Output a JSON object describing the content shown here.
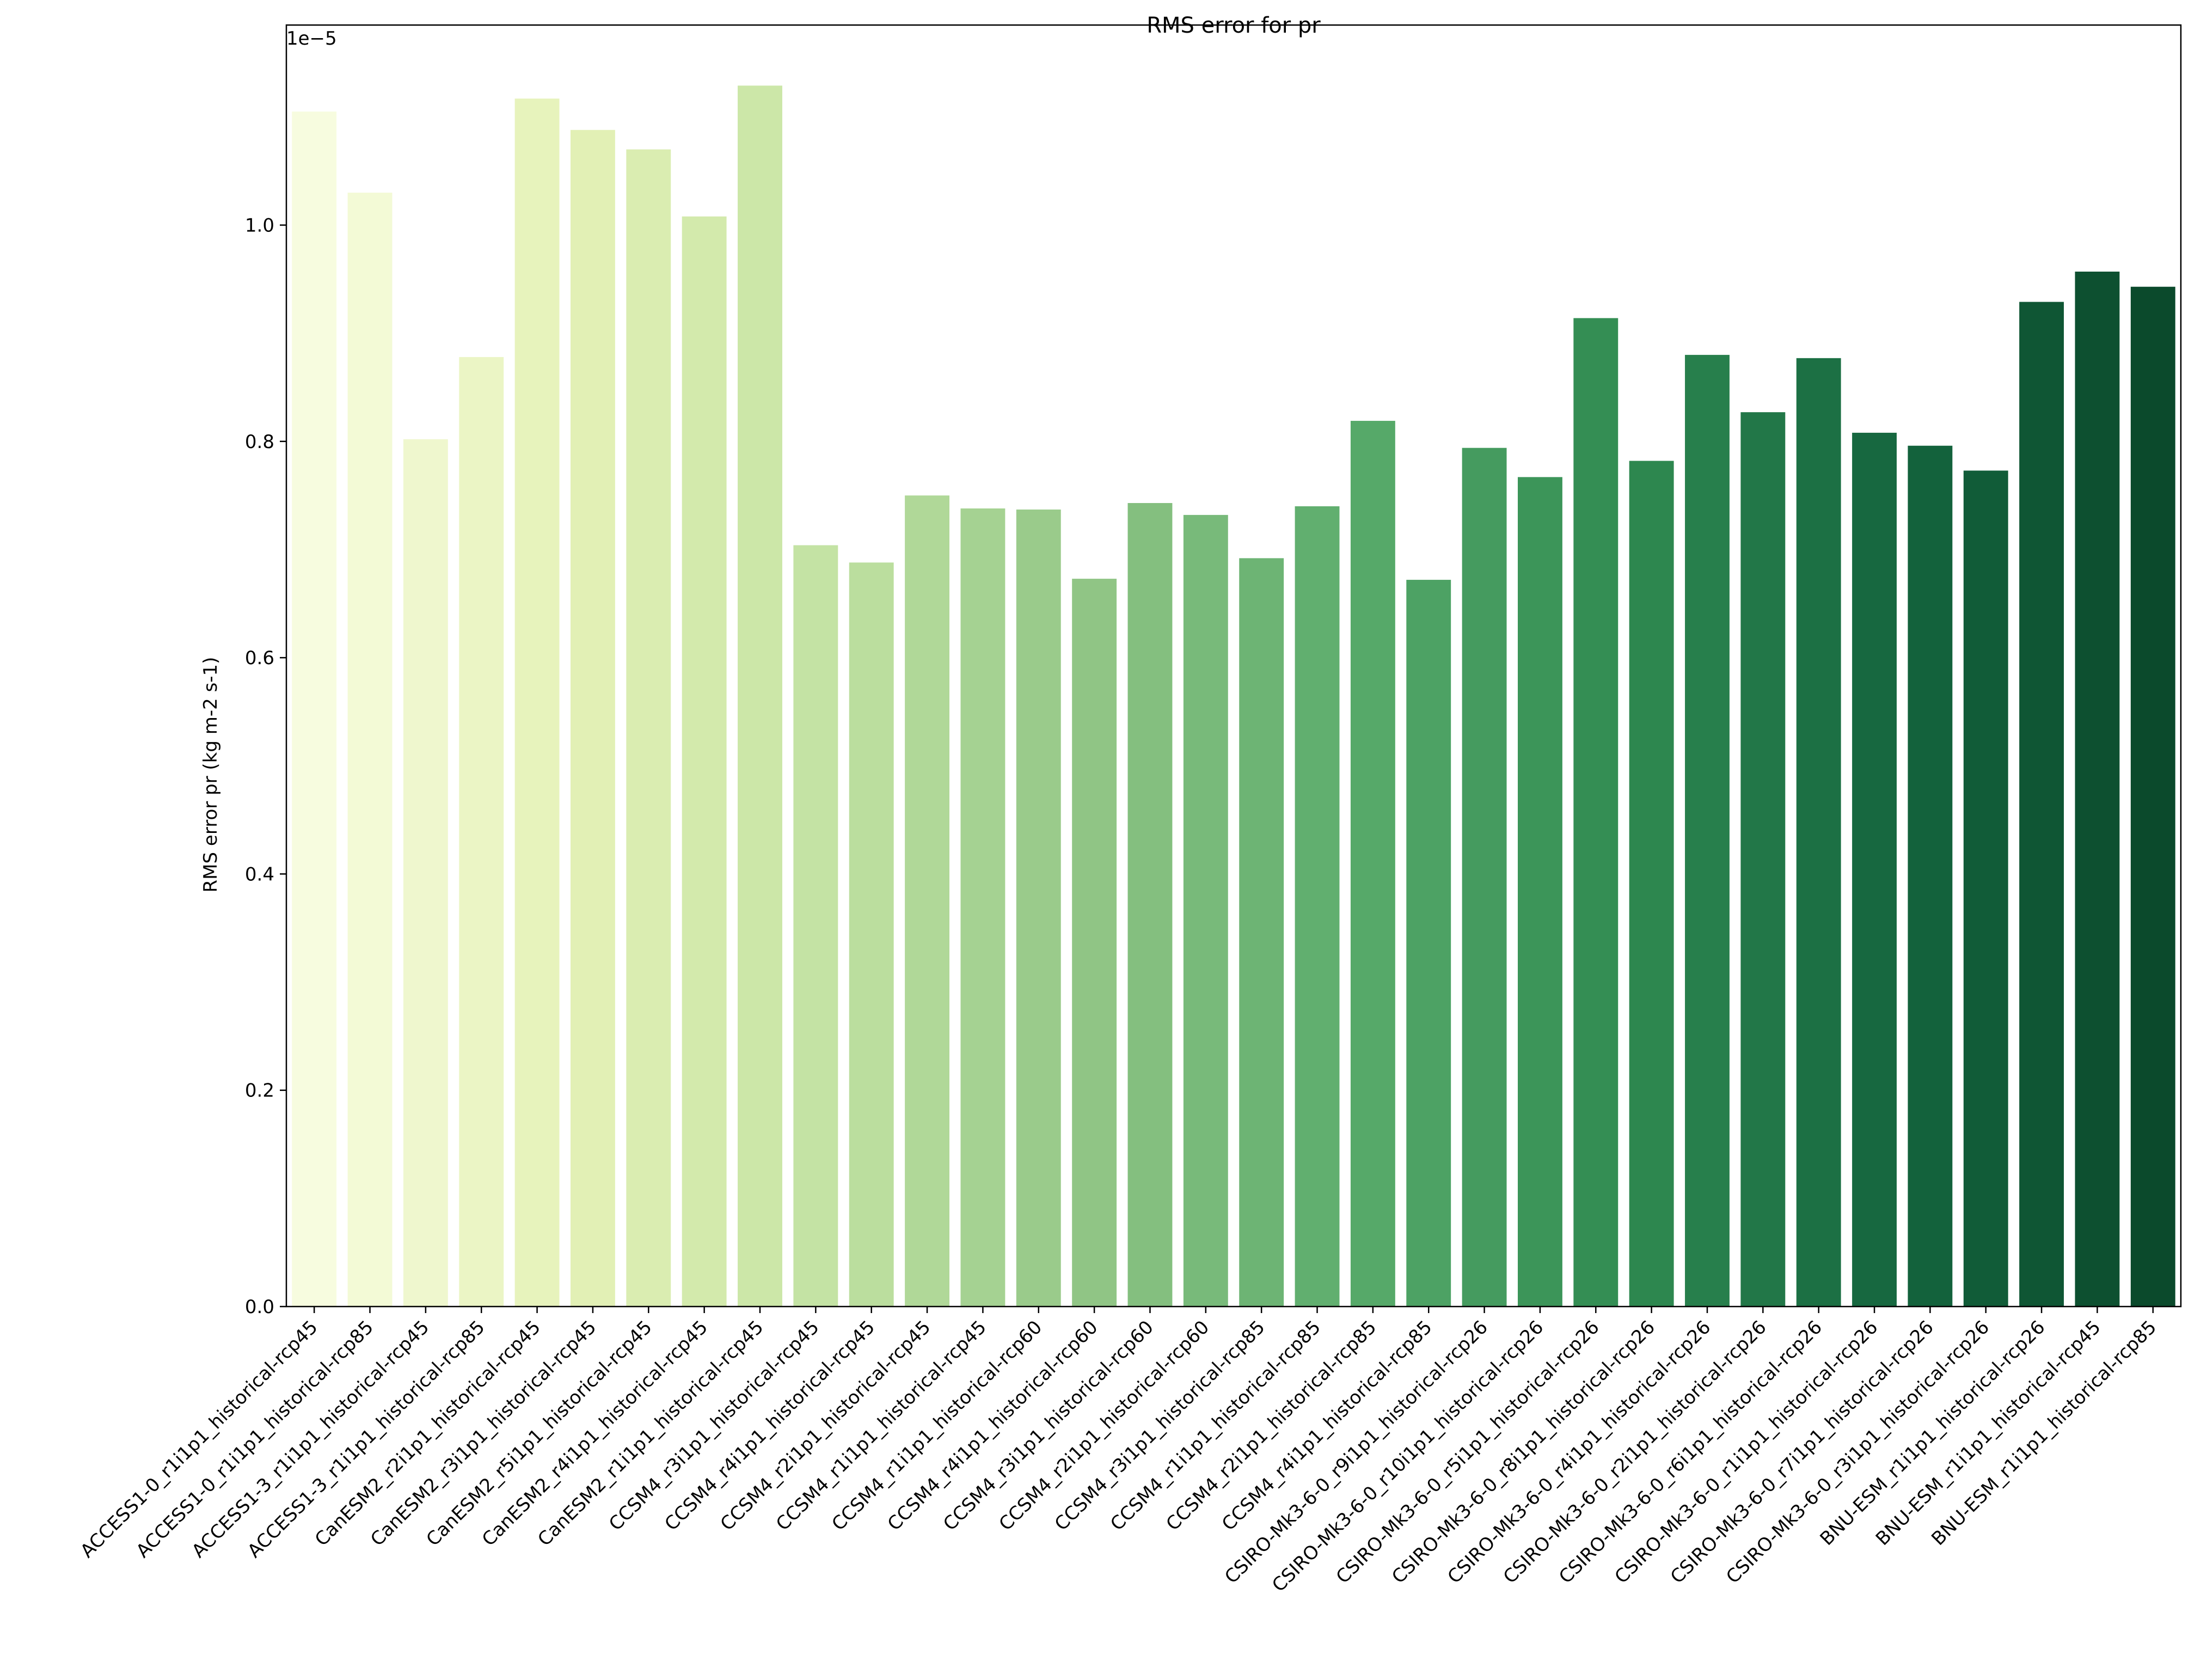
{
  "chart_data": {
    "type": "bar",
    "title": "RMS error for pr",
    "xlabel": "",
    "ylabel": "RMS error pr (kg m-2 s-1)",
    "offset_label": "1e−5",
    "ylim": [
      0,
      1.185
    ],
    "yticks": [
      0.0,
      0.2,
      0.4,
      0.6,
      0.8,
      1.0
    ],
    "ytick_labels": [
      "0.0",
      "0.2",
      "0.4",
      "0.6",
      "0.8",
      "1.0"
    ],
    "grid": false,
    "colormap": "YlGn",
    "colormap_stops": [
      "#f7fcdf",
      "#e4f1b6",
      "#c1e2a2",
      "#8ec484",
      "#57aa6a",
      "#2f8a51",
      "#15663f",
      "#0b4a2c"
    ],
    "categories": [
      "ACCESS1-0_r1i1p1_historical-rcp45",
      "ACCESS1-0_r1i1p1_historical-rcp85",
      "ACCESS1-3_r1i1p1_historical-rcp45",
      "ACCESS1-3_r1i1p1_historical-rcp85",
      "CanESM2_r2i1p1_historical-rcp45",
      "CanESM2_r3i1p1_historical-rcp45",
      "CanESM2_r5i1p1_historical-rcp45",
      "CanESM2_r4i1p1_historical-rcp45",
      "CanESM2_r1i1p1_historical-rcp45",
      "CCSM4_r3i1p1_historical-rcp45",
      "CCSM4_r4i1p1_historical-rcp45",
      "CCSM4_r2i1p1_historical-rcp45",
      "CCSM4_r1i1p1_historical-rcp45",
      "CCSM4_r1i1p1_historical-rcp60",
      "CCSM4_r4i1p1_historical-rcp60",
      "CCSM4_r3i1p1_historical-rcp60",
      "CCSM4_r2i1p1_historical-rcp60",
      "CCSM4_r3i1p1_historical-rcp85",
      "CCSM4_r1i1p1_historical-rcp85",
      "CCSM4_r2i1p1_historical-rcp85",
      "CCSM4_r4i1p1_historical-rcp85",
      "CSIRO-Mk3-6-0_r9i1p1_historical-rcp26",
      "CSIRO-Mk3-6-0_r10i1p1_historical-rcp26",
      "CSIRO-Mk3-6-0_r5i1p1_historical-rcp26",
      "CSIRO-Mk3-6-0_r8i1p1_historical-rcp26",
      "CSIRO-Mk3-6-0_r4i1p1_historical-rcp26",
      "CSIRO-Mk3-6-0_r2i1p1_historical-rcp26",
      "CSIRO-Mk3-6-0_r6i1p1_historical-rcp26",
      "CSIRO-Mk3-6-0_r1i1p1_historical-rcp26",
      "CSIRO-Mk3-6-0_r7i1p1_historical-rcp26",
      "CSIRO-Mk3-6-0_r3i1p1_historical-rcp26",
      "BNU-ESM_r1i1p1_historical-rcp26",
      "BNU-ESM_r1i1p1_historical-rcp45",
      "BNU-ESM_r1i1p1_historical-rcp85"
    ],
    "values": [
      1.105,
      1.03,
      0.802,
      0.878,
      1.117,
      1.088,
      1.07,
      1.008,
      1.129,
      0.704,
      0.688,
      0.75,
      0.738,
      0.737,
      0.673,
      0.743,
      0.732,
      0.692,
      0.74,
      0.819,
      0.672,
      0.794,
      0.767,
      0.914,
      0.782,
      0.88,
      0.827,
      0.877,
      0.808,
      0.796,
      0.773,
      0.929,
      0.957,
      0.943
    ]
  }
}
